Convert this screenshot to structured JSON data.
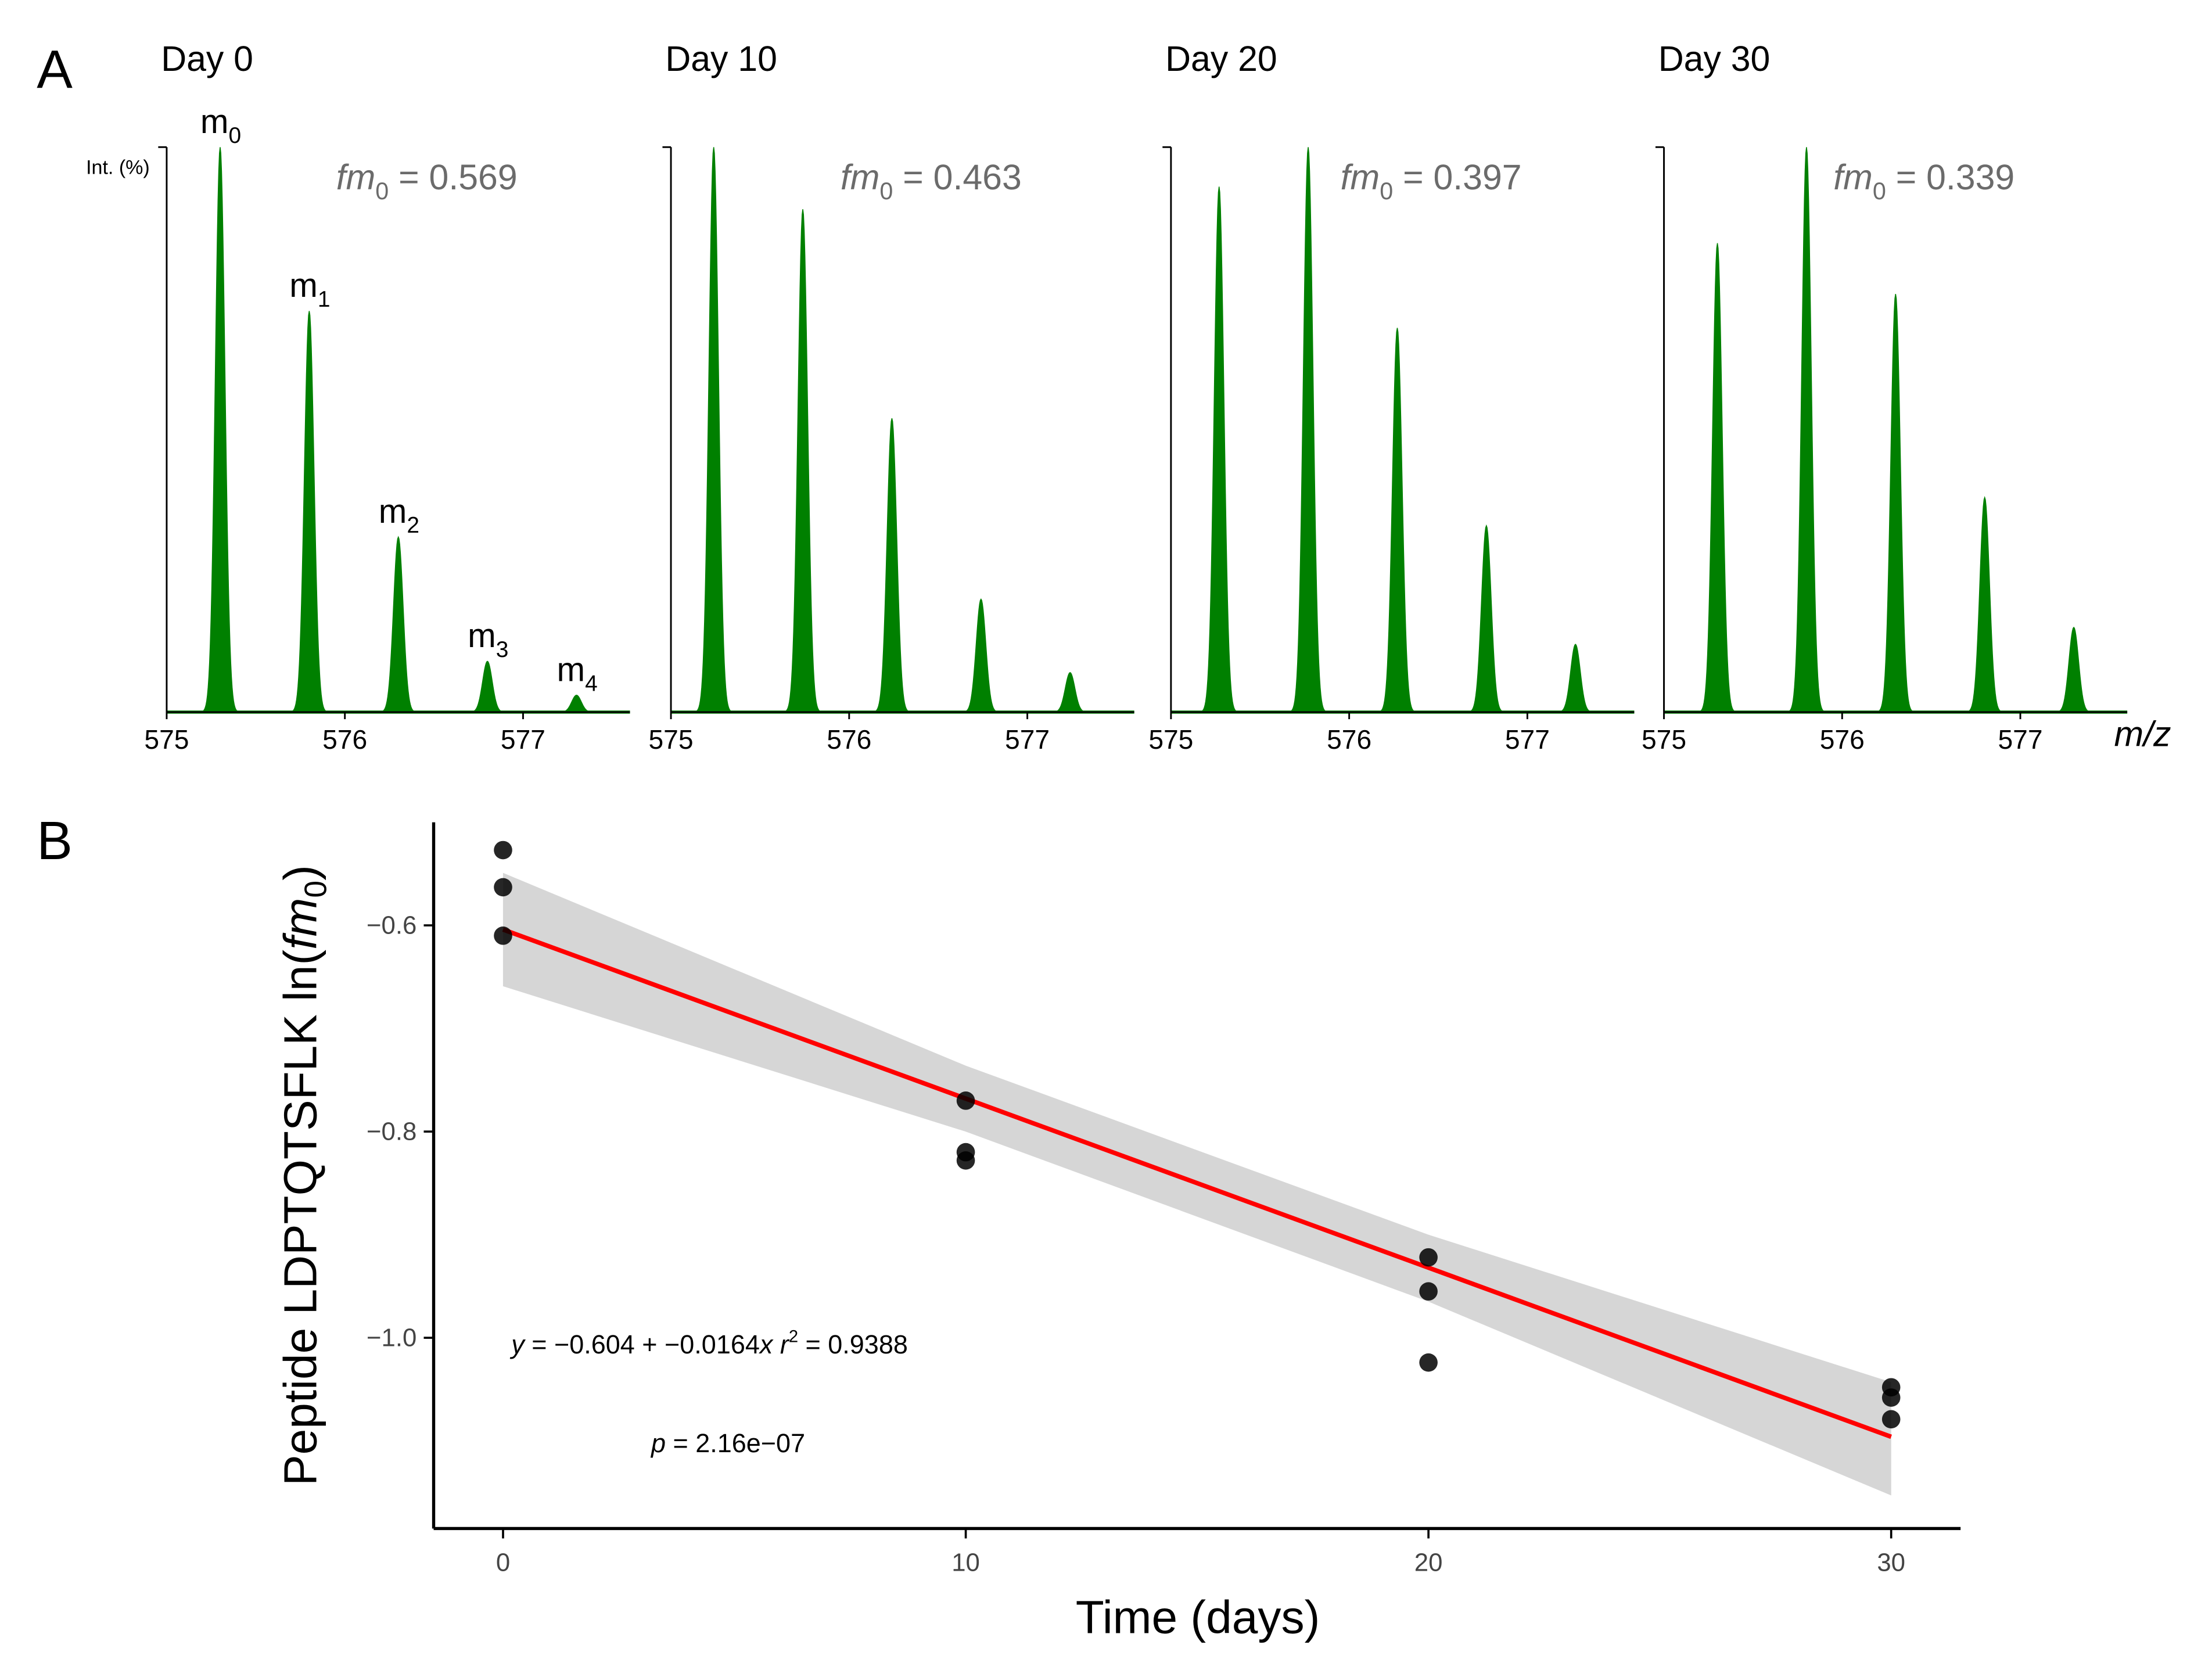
{
  "panel_labels": {
    "a": "A",
    "b": "B"
  },
  "colors": {
    "spectrum": "#008000",
    "fit_line": "#ff0000",
    "ci_band": "#d6d6d6",
    "points": "#000000",
    "annotation_gray": "#6b6b6b",
    "axis": "#000000"
  },
  "chart_data": [
    {
      "type": "area",
      "panel": "A",
      "y_axis_label": "Int. (%)",
      "x_axis_label": "m/z",
      "x_ticks": [
        "575",
        "576",
        "577"
      ],
      "xlim": [
        575,
        577.6
      ],
      "ylim": [
        0,
        100
      ],
      "peak_labels": [
        {
          "main": "m",
          "sub": "0"
        },
        {
          "main": "m",
          "sub": "1"
        },
        {
          "main": "m",
          "sub": "2"
        },
        {
          "main": "m",
          "sub": "3"
        },
        {
          "main": "m",
          "sub": "4"
        }
      ],
      "spectra": [
        {
          "title": "Day 0",
          "fm_symbol": "fm",
          "fm_sub": "0",
          "fm_text": " = 0.569",
          "peaks": [
            {
              "mz": 575.3,
              "intensity": 100
            },
            {
              "mz": 575.8,
              "intensity": 71
            },
            {
              "mz": 576.3,
              "intensity": 31
            },
            {
              "mz": 576.8,
              "intensity": 9
            },
            {
              "mz": 577.3,
              "intensity": 3
            }
          ]
        },
        {
          "title": "Day 10",
          "fm_symbol": "fm",
          "fm_sub": "0",
          "fm_text": " = 0.463",
          "peaks": [
            {
              "mz": 575.24,
              "intensity": 100
            },
            {
              "mz": 575.74,
              "intensity": 89
            },
            {
              "mz": 576.24,
              "intensity": 52
            },
            {
              "mz": 576.74,
              "intensity": 20
            },
            {
              "mz": 577.24,
              "intensity": 7
            }
          ]
        },
        {
          "title": "Day 20",
          "fm_symbol": "fm",
          "fm_sub": "0",
          "fm_text": " = 0.397",
          "peaks": [
            {
              "mz": 575.27,
              "intensity": 93
            },
            {
              "mz": 575.77,
              "intensity": 100
            },
            {
              "mz": 576.27,
              "intensity": 68
            },
            {
              "mz": 576.77,
              "intensity": 33
            },
            {
              "mz": 577.27,
              "intensity": 12
            }
          ]
        },
        {
          "title": "Day 30",
          "fm_symbol": "fm",
          "fm_sub": "0",
          "fm_text": " = 0.339",
          "peaks": [
            {
              "mz": 575.3,
              "intensity": 83
            },
            {
              "mz": 575.8,
              "intensity": 100
            },
            {
              "mz": 576.3,
              "intensity": 74
            },
            {
              "mz": 576.8,
              "intensity": 38
            },
            {
              "mz": 577.3,
              "intensity": 15
            }
          ]
        }
      ]
    },
    {
      "type": "scatter",
      "panel": "B",
      "xlabel": "Time (days)",
      "ylabel_main": "Peptide LDPTQTSFLK ln(",
      "ylabel_italic": "fm",
      "ylabel_sub": "0",
      "ylabel_close": ")",
      "xlim": [
        -1.5,
        31.5
      ],
      "ylim": [
        -1.185,
        -0.5
      ],
      "x_ticks": [
        0,
        10,
        20,
        30
      ],
      "x_tick_labels": [
        "0",
        "10",
        "20",
        "30"
      ],
      "y_ticks": [
        -0.6,
        -0.8,
        -1.0
      ],
      "y_tick_labels": [
        "−0.6",
        "−0.8",
        "−1.0"
      ],
      "points": [
        {
          "x": 0,
          "y": -0.527
        },
        {
          "x": 0,
          "y": -0.563
        },
        {
          "x": 0,
          "y": -0.61
        },
        {
          "x": 10,
          "y": -0.77
        },
        {
          "x": 10,
          "y": -0.82
        },
        {
          "x": 10,
          "y": -0.828
        },
        {
          "x": 20,
          "y": -0.922
        },
        {
          "x": 20,
          "y": -0.955
        },
        {
          "x": 20,
          "y": -1.024
        },
        {
          "x": 30,
          "y": -1.048
        },
        {
          "x": 30,
          "y": -1.058
        },
        {
          "x": 30,
          "y": -1.079
        }
      ],
      "fit": {
        "intercept": -0.604,
        "slope": -0.0164,
        "x_range": [
          0,
          30
        ]
      },
      "ci_band": [
        {
          "x": 0,
          "lo": -0.659,
          "hi": -0.549
        },
        {
          "x": 10,
          "lo": -0.8,
          "hi": -0.736
        },
        {
          "x": 20,
          "lo": -0.965,
          "hi": -0.9
        },
        {
          "x": 30,
          "lo": -1.153,
          "hi": -1.043
        }
      ],
      "equation": {
        "y": "y",
        "rhs": " = −0.604 + −0.0164",
        "x": "x",
        "r": "r",
        "r_exp": "2",
        "r_val": " = 0.9388"
      },
      "p_value": {
        "p": "p",
        "text": " = 2.16e−07"
      }
    }
  ]
}
